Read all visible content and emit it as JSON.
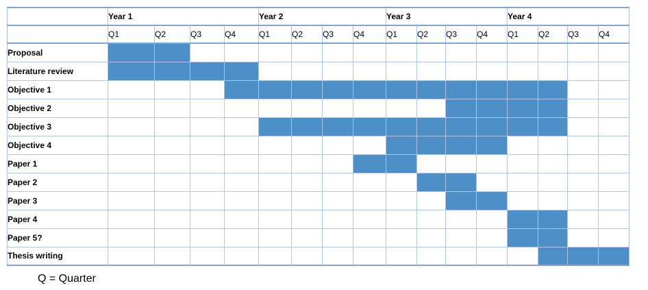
{
  "colors": {
    "bar": "#4e8fc8",
    "grid_line": "#b0c4e7",
    "heavy_line": "#84a2d4",
    "text": "#000000",
    "background": "#ffffff"
  },
  "chart_data": {
    "type": "gantt",
    "title": "",
    "years": [
      "Year 1",
      "Year 2",
      "Year 3",
      "Year 4"
    ],
    "quarters": [
      "Q1",
      "Q2",
      "Q3",
      "Q4"
    ],
    "total_quarters": 16,
    "axis_note": "16 quarter columns: 4 years x Q1-Q4; start/end are 1-based global quarter indices",
    "tasks": [
      {
        "label": "Proposal",
        "start": 1,
        "end": 2
      },
      {
        "label": "Literature review",
        "start": 1,
        "end": 4
      },
      {
        "label": "Objective 1",
        "start": 4,
        "end": 14
      },
      {
        "label": "Objective 2",
        "start": 11,
        "end": 14
      },
      {
        "label": "Objective 3",
        "start": 5,
        "end": 14
      },
      {
        "label": "Objective 4",
        "start": 9,
        "end": 12
      },
      {
        "label": "Paper 1",
        "start": 8,
        "end": 9
      },
      {
        "label": "Paper 2",
        "start": 10,
        "end": 11
      },
      {
        "label": "Paper 3",
        "start": 11,
        "end": 12
      },
      {
        "label": "Paper 4",
        "start": 13,
        "end": 14
      },
      {
        "label": "Paper 5?",
        "start": 13,
        "end": 14
      },
      {
        "label": "Thesis writing",
        "start": 14,
        "end": 16
      }
    ],
    "footnote": "Q = Quarter",
    "legend_position": "bottom-left",
    "grid": true
  }
}
